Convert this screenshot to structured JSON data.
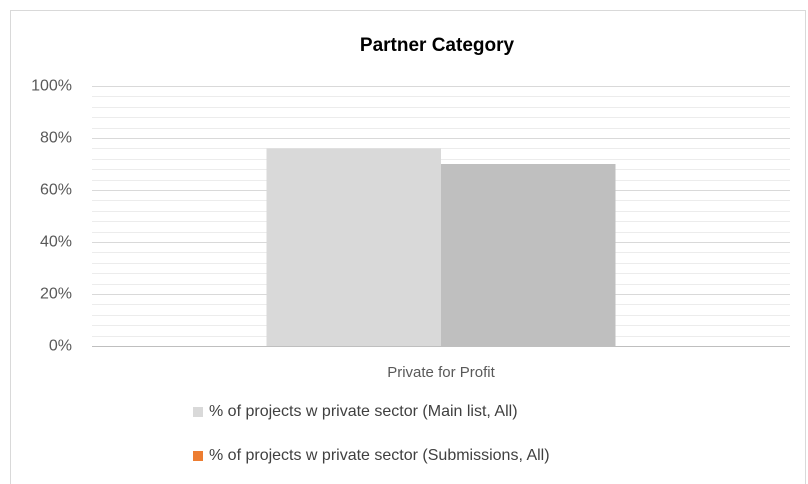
{
  "chart_data": {
    "type": "bar",
    "title": "Partner Category",
    "categories": [
      "Private for Profit"
    ],
    "series": [
      {
        "name": "% of projects w private sector (Main list, All)",
        "color": "#d9d9d9",
        "legend_color": "#d9d9d9",
        "values": [
          76
        ]
      },
      {
        "name": "% of projects w private sector (Submissions, All)",
        "color": "#bfbfbf",
        "legend_color": "#ed7d31",
        "values": [
          70
        ]
      }
    ],
    "ylim": [
      0,
      100
    ],
    "yticks": [
      {
        "value": 0,
        "label": "0%"
      },
      {
        "value": 20,
        "label": "20%"
      },
      {
        "value": 40,
        "label": "40%"
      },
      {
        "value": 60,
        "label": "60%"
      },
      {
        "value": 80,
        "label": "80%"
      },
      {
        "value": 100,
        "label": "100%"
      }
    ],
    "yminorticks": [
      4,
      8,
      12,
      16,
      24,
      28,
      32,
      36,
      44,
      48,
      52,
      56,
      64,
      68,
      72,
      76,
      84,
      88,
      92,
      96
    ],
    "grid": true,
    "legend": "bottom"
  }
}
